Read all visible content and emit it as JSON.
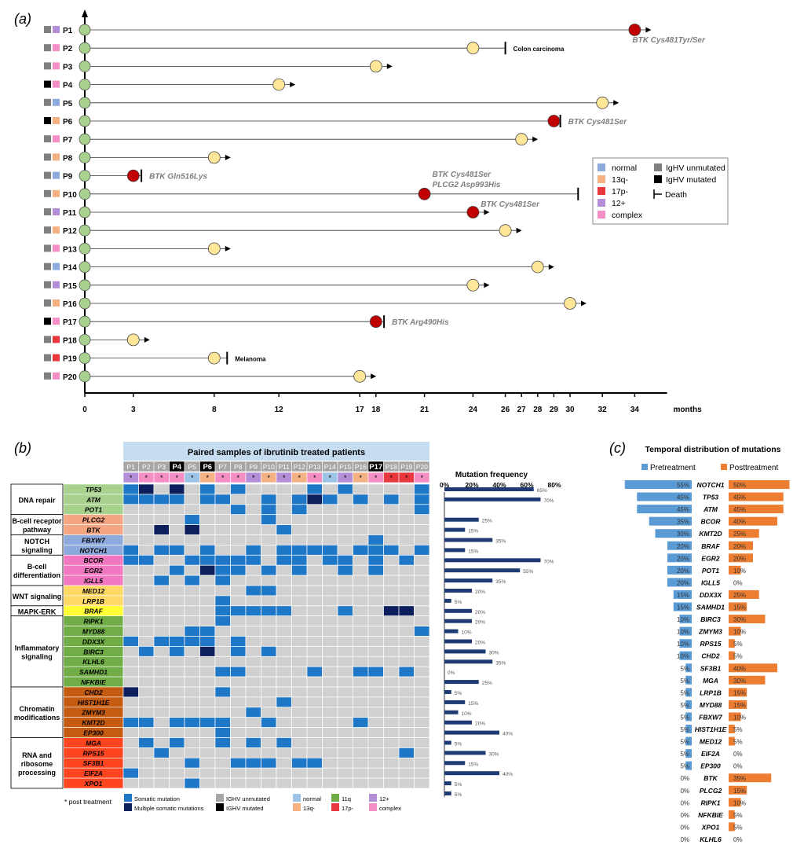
{
  "panel_a": {
    "label": "(a)",
    "axis_unit": "months",
    "ticks": [
      0,
      3,
      8,
      12,
      17,
      18,
      21,
      24,
      26,
      27,
      28,
      29,
      30,
      32,
      34
    ],
    "xlim": [
      0,
      36
    ],
    "legend": {
      "cyto": [
        {
          "name": "normal",
          "color": "#8ea9db"
        },
        {
          "name": "13q-",
          "color": "#f4b183"
        },
        {
          "name": "17p-",
          "color": "#e8383d"
        },
        {
          "name": "12+",
          "color": "#b38fd8"
        },
        {
          "name": "complex",
          "color": "#f48fc5"
        }
      ],
      "ighv": [
        {
          "name": "IgHV unmutated",
          "color": "#7f7f7f"
        },
        {
          "name": "IgHV mutated",
          "color": "#000000"
        },
        {
          "name": "Death",
          "color": "#000000"
        }
      ]
    },
    "patients": [
      {
        "id": "P1",
        "ighv": "#7f7f7f",
        "cyto": "#b38fd8",
        "end": 34,
        "event": "red",
        "arrow": true,
        "death": false,
        "note": "BTK Cys481Tyr/Ser",
        "note2": ""
      },
      {
        "id": "P2",
        "ighv": "#7f7f7f",
        "cyto": "#f48fc5",
        "end": 24,
        "event": "yellow",
        "arrow": false,
        "death": true,
        "death_at": 26,
        "note": "Colon carcinoma",
        "note2": ""
      },
      {
        "id": "P3",
        "ighv": "#7f7f7f",
        "cyto": "#f48fc5",
        "end": 18,
        "event": "yellow",
        "arrow": true,
        "death": false,
        "note": "",
        "note2": ""
      },
      {
        "id": "P4",
        "ighv": "#000000",
        "cyto": "#f48fc5",
        "end": 12,
        "event": "yellow",
        "arrow": true,
        "death": false,
        "note": "",
        "note2": ""
      },
      {
        "id": "P5",
        "ighv": "#7f7f7f",
        "cyto": "#8ea9db",
        "end": 32,
        "event": "yellow",
        "arrow": true,
        "death": false,
        "note": "",
        "note2": ""
      },
      {
        "id": "P6",
        "ighv": "#000000",
        "cyto": "#f4b183",
        "end": 29,
        "event": "red",
        "arrow": false,
        "death": true,
        "death_at": 29.4,
        "note": "BTK Cys481Ser",
        "note2": ""
      },
      {
        "id": "P7",
        "ighv": "#7f7f7f",
        "cyto": "#f48fc5",
        "end": 27,
        "event": "yellow",
        "arrow": true,
        "death": false,
        "note": "",
        "note2": ""
      },
      {
        "id": "P8",
        "ighv": "#7f7f7f",
        "cyto": "#f4b183",
        "end": 8,
        "event": "yellow",
        "arrow": true,
        "death": false,
        "note": "",
        "note2": ""
      },
      {
        "id": "P9",
        "ighv": "#7f7f7f",
        "cyto": "#8ea9db",
        "end": 3,
        "event": "red",
        "arrow": false,
        "death": true,
        "death_at": 3.5,
        "note": "BTK Gln516Lys",
        "note2": ""
      },
      {
        "id": "P10",
        "ighv": "#7f7f7f",
        "cyto": "#f4b183",
        "end": 21,
        "event": "red",
        "arrow": false,
        "death": true,
        "death_at": 30.5,
        "note": "BTK Cys481Ser",
        "note2": "PLCG2 Asp993His"
      },
      {
        "id": "P11",
        "ighv": "#7f7f7f",
        "cyto": "#b38fd8",
        "end": 24,
        "event": "red",
        "arrow": true,
        "death": false,
        "note": "BTK Cys481Ser",
        "note2": ""
      },
      {
        "id": "P12",
        "ighv": "#7f7f7f",
        "cyto": "#f4b183",
        "end": 26,
        "event": "yellow",
        "arrow": true,
        "death": false,
        "note": "",
        "note2": ""
      },
      {
        "id": "P13",
        "ighv": "#7f7f7f",
        "cyto": "#f48fc5",
        "end": 8,
        "event": "yellow",
        "arrow": true,
        "death": false,
        "note": "",
        "note2": ""
      },
      {
        "id": "P14",
        "ighv": "#7f7f7f",
        "cyto": "#8ea9db",
        "end": 28,
        "event": "yellow",
        "arrow": true,
        "death": false,
        "note": "",
        "note2": ""
      },
      {
        "id": "P15",
        "ighv": "#7f7f7f",
        "cyto": "#b38fd8",
        "end": 24,
        "event": "yellow",
        "arrow": true,
        "death": false,
        "note": "",
        "note2": ""
      },
      {
        "id": "P16",
        "ighv": "#7f7f7f",
        "cyto": "#f4b183",
        "end": 30,
        "event": "yellow",
        "arrow": true,
        "death": false,
        "note": "",
        "note2": ""
      },
      {
        "id": "P17",
        "ighv": "#000000",
        "cyto": "#f48fc5",
        "end": 18,
        "event": "red",
        "arrow": false,
        "death": true,
        "death_at": 18.5,
        "note": "BTK Arg490His",
        "note2": ""
      },
      {
        "id": "P18",
        "ighv": "#7f7f7f",
        "cyto": "#e8383d",
        "end": 3,
        "event": "yellow",
        "arrow": true,
        "death": false,
        "note": "",
        "note2": ""
      },
      {
        "id": "P19",
        "ighv": "#7f7f7f",
        "cyto": "#e8383d",
        "end": 8,
        "event": "yellow",
        "arrow": false,
        "death": true,
        "death_at": 8.8,
        "note": "Melanoma",
        "note2": ""
      },
      {
        "id": "P20",
        "ighv": "#7f7f7f",
        "cyto": "#f48fc5",
        "end": 17,
        "event": "yellow",
        "arrow": true,
        "death": false,
        "note": "",
        "note2": ""
      }
    ]
  },
  "panel_b": {
    "label": "(b)",
    "title": "Paired samples of ibrutinib treated patients",
    "freq_title": "Mutation frequency",
    "freq_ticks": [
      "0%",
      "20%",
      "40%",
      "60%",
      "80%"
    ],
    "footnote": "* post treatment",
    "legend": [
      {
        "name": "Somatic mutation",
        "color": "#1f77c8"
      },
      {
        "name": "Multiple somatic mutations",
        "color": "#0d1f5c"
      },
      {
        "name": "IGHV unmutated",
        "color": "#a6a6a6"
      },
      {
        "name": "IGHV mutated",
        "color": "#000000"
      },
      {
        "name": "normal",
        "color": "#9dc3e6"
      },
      {
        "name": "13q-",
        "color": "#f4b183"
      },
      {
        "name": "11q",
        "color": "#70ad47"
      },
      {
        "name": "17p-",
        "color": "#e8383d"
      },
      {
        "name": "12+",
        "color": "#b38fd8"
      },
      {
        "name": "complex",
        "color": "#f48fc5"
      }
    ],
    "patients": [
      "P1",
      "P2",
      "P3",
      "P4",
      "P5",
      "P6",
      "P7",
      "P8",
      "P9",
      "P10",
      "P11",
      "P12",
      "P13",
      "P14",
      "P15",
      "P16",
      "P17",
      "P18",
      "P19",
      "P20"
    ],
    "ighv_black": [
      "P4",
      "P6",
      "P17"
    ],
    "pt_colors": [
      "#b38fd8",
      "#f48fc5",
      "#f48fc5",
      "#f48fc5",
      "#9dc3e6",
      "#f4b183",
      "#f48fc5",
      "#f48fc5",
      "#b38fd8",
      "#f4b183",
      "#b38fd8",
      "#f4b183",
      "#f48fc5",
      "#9dc3e6",
      "#b38fd8",
      "#f4b183",
      "#f48fc5",
      "#e8383d",
      "#e8383d",
      "#f48fc5"
    ],
    "groups": [
      {
        "name": "DNA repair",
        "rows": 3
      },
      {
        "name": "B-cell receptor pathway",
        "rows": 2
      },
      {
        "name": "NOTCH signaling",
        "rows": 2
      },
      {
        "name": "B-cell differentiation",
        "rows": 3
      },
      {
        "name": "WNT signaling",
        "rows": 2
      },
      {
        "name": "MAPK-ERK",
        "rows": 1
      },
      {
        "name": "Inflammatory signaling",
        "rows": 7
      },
      {
        "name": "Chromatin modifications",
        "rows": 5
      },
      {
        "name": "RNA and ribosome processing",
        "rows": 5
      }
    ],
    "genes": [
      {
        "name": "TP53",
        "color": "#a9d18e",
        "freq": 65
      },
      {
        "name": "ATM",
        "color": "#a9d18e",
        "freq": 70
      },
      {
        "name": "POT1",
        "color": "#a9d18e",
        "freq": 35
      },
      {
        "name": "PLCG2",
        "color": "#f4a582",
        "freq": 25
      },
      {
        "name": "BTK",
        "color": "#f4a582",
        "freq": 15
      },
      {
        "name": "FBXW7",
        "color": "#8ea9db",
        "freq": 35
      },
      {
        "name": "NOTCH1",
        "color": "#8ea9db",
        "freq": 15
      },
      {
        "name": "BCOR",
        "color": "#f178c0",
        "freq": 70
      },
      {
        "name": "EGR2",
        "color": "#f178c0",
        "freq": 55
      },
      {
        "name": "IGLL5",
        "color": "#f178c0",
        "freq": 35
      },
      {
        "name": "MED12",
        "color": "#ffd966",
        "freq": 20
      },
      {
        "name": "LRP1B",
        "color": "#ffd966",
        "freq": 5
      },
      {
        "name": "BRAF",
        "color": "#ffff33",
        "freq": 20
      },
      {
        "name": "RIPK1",
        "color": "#70ad47",
        "freq": 20
      },
      {
        "name": "MYD88",
        "color": "#70ad47",
        "freq": 10
      },
      {
        "name": "DDX3X",
        "color": "#70ad47",
        "freq": 20
      },
      {
        "name": "BIRC3",
        "color": "#70ad47",
        "freq": 30
      },
      {
        "name": "KLHL6",
        "color": "#70ad47",
        "freq": 35
      },
      {
        "name": "SAMHD1",
        "color": "#70ad47",
        "freq": 0
      },
      {
        "name": "NFKBIE",
        "color": "#70ad47",
        "freq": 25
      },
      {
        "name": "CHD2",
        "color": "#c55a11",
        "freq": 5
      },
      {
        "name": "HIST1H1E",
        "color": "#c55a11",
        "freq": 15
      },
      {
        "name": "ZMYM3",
        "color": "#c55a11",
        "freq": 10
      },
      {
        "name": "KMT2D",
        "color": "#c55a11",
        "freq": 20
      },
      {
        "name": "EP300",
        "color": "#c55a11",
        "freq": 40
      },
      {
        "name": "MGA",
        "color": "#ff4520",
        "freq": 5
      },
      {
        "name": "RPS15",
        "color": "#ff4520",
        "freq": 30
      },
      {
        "name": "SF3B1",
        "color": "#ff4520",
        "freq": 15
      },
      {
        "name": "EIF2A",
        "color": "#ff4520",
        "freq": 40
      },
      {
        "name": "XPO1",
        "color": "#ff4520",
        "freq": 5
      }
    ],
    "freq_label_rows": [
      {
        "row": 0,
        "label": "65%"
      },
      {
        "row": 1,
        "label": "70%"
      },
      {
        "row": 3,
        "label": "25%"
      },
      {
        "row": 4,
        "label": "15%"
      },
      {
        "row": 5,
        "label": "35%"
      },
      {
        "row": 6,
        "label": "15%"
      },
      {
        "row": 7,
        "label": "70%"
      },
      {
        "row": 8,
        "label": "55%"
      },
      {
        "row": 9,
        "label": "35%"
      },
      {
        "row": 10,
        "label": "20%"
      },
      {
        "row": 11,
        "label": "5%"
      },
      {
        "row": 12,
        "label": "20%"
      },
      {
        "row": 13,
        "label": "20%"
      },
      {
        "row": 14,
        "label": "10%"
      },
      {
        "row": 15,
        "label": "20%"
      },
      {
        "row": 16,
        "label": "30%"
      },
      {
        "row": 17,
        "label": "35%"
      },
      {
        "row": 18,
        "label": "0%"
      },
      {
        "row": 19,
        "label": "25%"
      },
      {
        "row": 20,
        "label": "5%"
      },
      {
        "row": 21,
        "label": "15%"
      },
      {
        "row": 22,
        "label": "10%"
      },
      {
        "row": 23,
        "label": "20%"
      },
      {
        "row": 24,
        "label": "40%"
      },
      {
        "row": 25,
        "label": "5%"
      },
      {
        "row": 26,
        "label": "30%"
      },
      {
        "row": 27,
        "label": "15%"
      },
      {
        "row": 28,
        "label": "40%"
      },
      {
        "row": 29,
        "label": "5%"
      },
      {
        "row": 30,
        "label": "5%"
      }
    ],
    "matrix": [
      "1202010100001010000101",
      "1111011001012101010111",
      "0000000101010000000100",
      "0000100001000000000000",
      "0020200000100000000000",
      "0000000000000000100000",
      "1011010010111101110111",
      "1100111110110110101010",
      "0001021101010010100000",
      "0010101000000000000000",
      "0000000011000000000000",
      "0000001000000000000000",
      "0000001111100010022000",
      "0000001000000000000000",
      "0000110000000000000100",
      "1011110100000000000000",
      "0101020101000000000000",
      "0000000000000000000000",
      "0000001100001001101000",
      "0000000000000000000000",
      "2000001000000000000000",
      "0000000000100000000000",
      "0000000010000000000000",
      "1101111001000001000000",
      "0000001000000000000000",
      "0101001010100000000000",
      "0010000000000000001000",
      "0000100111011000000000",
      "1000000000000000000000",
      "0000100000000000000000",
      "0000100000000000000000"
    ]
  },
  "panel_c": {
    "label": "(c)",
    "title": "Temporal distribution of mutations",
    "legend": [
      {
        "name": "Pretreatment",
        "color": "#5b9bd5"
      },
      {
        "name": "Posttreatment",
        "color": "#ed7d31"
      }
    ],
    "rows": [
      {
        "gene": "NOTCH1",
        "pre": 55,
        "post": 50
      },
      {
        "gene": "TP53",
        "pre": 45,
        "post": 45
      },
      {
        "gene": "ATM",
        "pre": 45,
        "post": 45
      },
      {
        "gene": "BCOR",
        "pre": 35,
        "post": 40
      },
      {
        "gene": "KMT2D",
        "pre": 30,
        "post": 25
      },
      {
        "gene": "BRAF",
        "pre": 20,
        "post": 20
      },
      {
        "gene": "EGR2",
        "pre": 20,
        "post": 20
      },
      {
        "gene": "POT1",
        "pre": 20,
        "post": 10
      },
      {
        "gene": "IGLL5",
        "pre": 20,
        "post": 0
      },
      {
        "gene": "DDX3X",
        "pre": 15,
        "post": 25
      },
      {
        "gene": "SAMHD1",
        "pre": 15,
        "post": 15
      },
      {
        "gene": "BIRC3",
        "pre": 10,
        "post": 30
      },
      {
        "gene": "ZMYM3",
        "pre": 10,
        "post": 10
      },
      {
        "gene": "RPS15",
        "pre": 10,
        "post": 5
      },
      {
        "gene": "CHD2",
        "pre": 10,
        "post": 5
      },
      {
        "gene": "SF3B1",
        "pre": 5,
        "post": 40
      },
      {
        "gene": "MGA",
        "pre": 5,
        "post": 30
      },
      {
        "gene": "LRP1B",
        "pre": 5,
        "post": 15
      },
      {
        "gene": "MYD88",
        "pre": 5,
        "post": 15
      },
      {
        "gene": "FBXW7",
        "pre": 5,
        "post": 10
      },
      {
        "gene": "HIST1H1E",
        "pre": 5,
        "post": 5
      },
      {
        "gene": "MED12",
        "pre": 5,
        "post": 5
      },
      {
        "gene": "EIF2A",
        "pre": 5,
        "post": 0
      },
      {
        "gene": "EP300",
        "pre": 5,
        "post": 0
      },
      {
        "gene": "BTK",
        "pre": 0,
        "post": 35
      },
      {
        "gene": "PLCG2",
        "pre": 0,
        "post": 15
      },
      {
        "gene": "RIPK1",
        "pre": 0,
        "post": 10
      },
      {
        "gene": "NFKBIE",
        "pre": 0,
        "post": 5
      },
      {
        "gene": "XPO1",
        "pre": 0,
        "post": 5
      },
      {
        "gene": "KLHL6",
        "pre": 0,
        "post": 0
      }
    ]
  },
  "chart_data": [
    {
      "type": "scatter",
      "xlabel": "months",
      "categories": [
        "P1",
        "P2",
        "P3",
        "P4",
        "P5",
        "P6",
        "P7",
        "P8",
        "P9",
        "P10",
        "P11",
        "P12",
        "P13",
        "P14",
        "P15",
        "P16",
        "P17",
        "P18",
        "P19",
        "P20"
      ],
      "series": [
        {
          "values": [
            34,
            24,
            18,
            12,
            32,
            29,
            27,
            8,
            3,
            21,
            24,
            26,
            8,
            28,
            24,
            30,
            18,
            3,
            8,
            17
          ]
        }
      ]
    },
    {
      "type": "bar",
      "title": "Mutation frequency",
      "categories": [
        "TP53",
        "ATM",
        "POT1",
        "PLCG2",
        "BTK",
        "FBXW7",
        "NOTCH1",
        "BCOR",
        "EGR2",
        "IGLL5",
        "MED12",
        "LRP1B",
        "BRAF",
        "RIPK1",
        "MYD88",
        "DDX3X",
        "BIRC3",
        "KLHL6",
        "SAMHD1",
        "NFKBIE",
        "CHD2",
        "HIST1H1E",
        "ZMYM3",
        "KMT2D",
        "EP300",
        "MGA",
        "RPS15",
        "SF3B1",
        "EIF2A",
        "XPO1"
      ],
      "values": [
        65,
        70,
        35,
        25,
        15,
        35,
        15,
        70,
        55,
        35,
        20,
        5,
        20,
        20,
        10,
        20,
        30,
        35,
        0,
        25,
        5,
        15,
        10,
        20,
        40,
        5,
        30,
        15,
        40,
        5
      ],
      "ylim": [
        0,
        80
      ]
    },
    {
      "type": "bar",
      "title": "Temporal distribution of mutations",
      "categories": [
        "NOTCH1",
        "TP53",
        "ATM",
        "BCOR",
        "KMT2D",
        "BRAF",
        "EGR2",
        "POT1",
        "IGLL5",
        "DDX3X",
        "SAMHD1",
        "BIRC3",
        "ZMYM3",
        "RPS15",
        "CHD2",
        "SF3B1",
        "MGA",
        "LRP1B",
        "MYD88",
        "FBXW7",
        "HIST1H1E",
        "MED12",
        "EIF2A",
        "EP300",
        "BTK",
        "PLCG2",
        "RIPK1",
        "NFKBIE",
        "XPO1",
        "KLHL6"
      ],
      "series": [
        {
          "name": "Pretreatment",
          "values": [
            55,
            45,
            45,
            35,
            30,
            20,
            20,
            20,
            20,
            15,
            15,
            10,
            10,
            10,
            10,
            5,
            5,
            5,
            5,
            5,
            5,
            5,
            5,
            5,
            0,
            0,
            0,
            0,
            0,
            0
          ]
        },
        {
          "name": "Posttreatment",
          "values": [
            50,
            45,
            45,
            40,
            25,
            20,
            20,
            10,
            0,
            25,
            15,
            30,
            10,
            5,
            5,
            40,
            30,
            15,
            15,
            10,
            5,
            5,
            0,
            0,
            35,
            15,
            10,
            5,
            5,
            0
          ]
        }
      ]
    }
  ]
}
